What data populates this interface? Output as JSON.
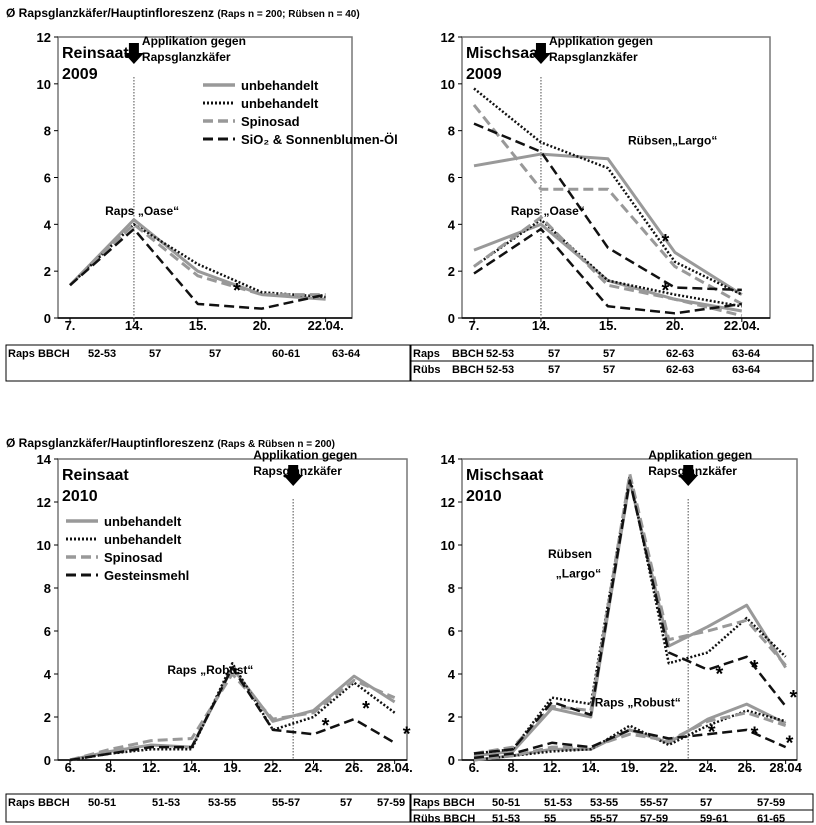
{
  "headers": [
    {
      "main": "Ø Rapsglanzkäfer/Hauptinfloreszenz",
      "sub": "(Raps n = 200; Rübsen n = 40)"
    },
    {
      "main": "Ø Rapsglanzkäfer/Hauptinfloreszenz",
      "sub": "(Raps & Rübsen n = 200)"
    }
  ],
  "application_label": [
    "Applikation gegen",
    "Rapsglanzkäfer"
  ],
  "colors": {
    "gray": "#999999",
    "black": "#111111",
    "vline": "#888888"
  },
  "chart_data": [
    {
      "type": "line",
      "panel_label": [
        "Reinsaat",
        "2009"
      ],
      "x": [
        "7.",
        "14.",
        "15.",
        "20.",
        "22.04."
      ],
      "ylim": [
        0,
        12
      ],
      "yticks": [
        0,
        2,
        4,
        6,
        8,
        10,
        12
      ],
      "grid": false,
      "application_at_index": 1,
      "legend": {
        "placement": "top-right",
        "entries": [
          {
            "name": "unbehandelt",
            "style": "gray_solid"
          },
          {
            "name": "unbehandelt",
            "style": "black_dotted"
          },
          {
            "name": "Spinosad",
            "style": "gray_dashed"
          },
          {
            "name": "SiO₂ & Sonnenblumen-Öl",
            "style": "black_dashed"
          }
        ]
      },
      "series": [
        {
          "style": "gray_solid",
          "values": [
            1.4,
            4.2,
            2.0,
            1.0,
            0.8
          ]
        },
        {
          "style": "black_dotted",
          "values": [
            1.4,
            4.0,
            2.3,
            1.1,
            0.9
          ]
        },
        {
          "style": "gray_dashed",
          "values": [
            1.4,
            4.0,
            1.8,
            1.0,
            1.0
          ]
        },
        {
          "style": "black_dashed",
          "values": [
            1.4,
            3.8,
            0.6,
            0.4,
            1.0
          ]
        }
      ],
      "annotations": [
        {
          "text": "Raps „Oase“",
          "x": 0.55,
          "y": 4.4
        },
        {
          "text": "*",
          "x": 2.55,
          "y": 0.9
        }
      ],
      "bbch": {
        "label_cols": [
          "Raps BBCH"
        ],
        "rows": [
          [
            "Raps BBCH",
            "52-53",
            "57",
            "57",
            "60-61",
            "63-64"
          ]
        ]
      }
    },
    {
      "type": "line",
      "panel_label": [
        "Mischsaat",
        "2009"
      ],
      "x": [
        "7.",
        "14.",
        "15.",
        "20.",
        "22.04."
      ],
      "ylim": [
        0,
        12
      ],
      "yticks": [
        0,
        2,
        4,
        6,
        8,
        10,
        12
      ],
      "grid": false,
      "application_at_index": 1,
      "series": [
        {
          "style": "gray_solid",
          "values": [
            6.5,
            7.0,
            6.8,
            2.8,
            1.0
          ]
        },
        {
          "style": "black_dotted",
          "values": [
            9.8,
            7.5,
            6.4,
            2.4,
            1.0
          ]
        },
        {
          "style": "gray_dashed",
          "values": [
            9.1,
            5.5,
            5.5,
            2.2,
            0.6
          ]
        },
        {
          "style": "black_dashed",
          "values": [
            8.3,
            7.1,
            3.0,
            1.3,
            1.2
          ]
        },
        {
          "style": "gray_solid",
          "values": [
            2.9,
            4.0,
            1.6,
            0.8,
            0.3
          ]
        },
        {
          "style": "black_dotted",
          "values": [
            2.2,
            4.2,
            1.6,
            1.0,
            0.5
          ]
        },
        {
          "style": "gray_dashed",
          "values": [
            2.2,
            4.3,
            1.4,
            0.8,
            0.1
          ]
        },
        {
          "style": "black_dashed",
          "values": [
            1.9,
            3.8,
            0.5,
            0.2,
            0.6
          ]
        }
      ],
      "annotations": [
        {
          "text": "Rübsen„Largo“",
          "x": 2.3,
          "y": 7.4
        },
        {
          "text": "Raps „Oase“",
          "x": 0.55,
          "y": 4.4
        },
        {
          "text": "*",
          "x": 2.8,
          "y": 3.0
        },
        {
          "text": "*",
          "x": 2.8,
          "y": 0.9
        }
      ],
      "bbch": {
        "label_cols": [
          "Raps",
          "BBCH"
        ],
        "rows": [
          [
            "Raps",
            "BBCH",
            "52-53",
            "57",
            "57",
            "62-63",
            "63-64"
          ],
          [
            "Rübs",
            "BBCH",
            "52-53",
            "57",
            "57",
            "62-63",
            "63-64"
          ]
        ]
      }
    },
    {
      "type": "line",
      "panel_label": [
        "Reinsaat",
        "2010"
      ],
      "x": [
        "6.",
        "8.",
        "12.",
        "14.",
        "19.",
        "22.",
        "24.",
        "26.",
        "28.04."
      ],
      "ylim": [
        0,
        14
      ],
      "yticks": [
        0,
        2,
        4,
        6,
        8,
        10,
        12,
        14
      ],
      "grid": false,
      "application_at_index": 5.5,
      "legend": {
        "placement": "top-left",
        "entries": [
          {
            "name": "unbehandelt",
            "style": "gray_solid"
          },
          {
            "name": "unbehandelt",
            "style": "black_dotted"
          },
          {
            "name": "Spinosad",
            "style": "gray_dashed"
          },
          {
            "name": "Gesteinsmehl",
            "style": "black_dashed"
          }
        ]
      },
      "series": [
        {
          "style": "gray_solid",
          "x_index": [
            0,
            1,
            2,
            3,
            4,
            5,
            6,
            7,
            8
          ],
          "values": [
            0,
            0.4,
            0.7,
            0.6,
            4.3,
            1.8,
            2.3,
            3.9,
            2.7
          ]
        },
        {
          "style": "black_dotted",
          "x_index": [
            0,
            1,
            2,
            3,
            4,
            5,
            6,
            7,
            8
          ],
          "values": [
            0,
            0.3,
            0.5,
            0.5,
            4.5,
            1.4,
            2.0,
            3.6,
            2.2
          ]
        },
        {
          "style": "gray_dashed",
          "x_index": [
            0,
            1,
            2,
            3,
            4,
            5,
            6,
            7,
            8
          ],
          "values": [
            0,
            0.5,
            0.9,
            1.0,
            4.0,
            1.9,
            2.2,
            3.7,
            2.9
          ]
        },
        {
          "style": "black_dashed",
          "x_index": [
            0,
            1,
            2,
            3,
            4,
            5,
            6,
            7,
            8
          ],
          "values": [
            0,
            0.3,
            0.6,
            0.6,
            4.3,
            1.4,
            1.2,
            1.9,
            0.8
          ]
        }
      ],
      "annotations": [
        {
          "text": "Raps „Robust“",
          "x": 2.4,
          "y": 4.0
        },
        {
          "text": "*",
          "x": 6.2,
          "y": 1.3
        },
        {
          "text": "*",
          "x": 7.2,
          "y": 2.1
        },
        {
          "text": "*",
          "x": 8.2,
          "y": 0.9
        }
      ],
      "bbch": {
        "label_cols": [
          "Raps BBCH"
        ],
        "rows": [
          [
            "Raps BBCH",
            "50-51",
            "51-53",
            "53-55",
            "55-57",
            "57",
            "57-59"
          ]
        ]
      }
    },
    {
      "type": "line",
      "panel_label": [
        "Mischsaat",
        "2010"
      ],
      "x": [
        "6.",
        "8.",
        "12.",
        "14.",
        "19.",
        "22.",
        "24.",
        "26.",
        "28.04"
      ],
      "ylim": [
        0,
        14
      ],
      "yticks": [
        0,
        2,
        4,
        6,
        8,
        10,
        12,
        14
      ],
      "grid": false,
      "application_at_index": 5.5,
      "series": [
        {
          "style": "gray_solid",
          "x_index": [
            0,
            1,
            2,
            3,
            4,
            5,
            6,
            7,
            8
          ],
          "values": [
            0.2,
            0.4,
            2.4,
            2.0,
            13.0,
            5.3,
            6.2,
            7.2,
            4.3
          ]
        },
        {
          "style": "black_dotted",
          "x_index": [
            0,
            1,
            2,
            3,
            4,
            5,
            6,
            7,
            8
          ],
          "values": [
            0.3,
            0.5,
            2.9,
            2.6,
            13.2,
            4.5,
            5.0,
            6.6,
            4.8
          ]
        },
        {
          "style": "gray_dashed",
          "x_index": [
            0,
            1,
            2,
            3,
            4,
            5,
            6,
            7,
            8
          ],
          "values": [
            0.3,
            0.6,
            2.5,
            2.3,
            13.3,
            5.6,
            6.0,
            6.5,
            4.4
          ]
        },
        {
          "style": "black_dashed",
          "x_index": [
            0,
            1,
            2,
            3,
            4,
            5,
            6,
            7,
            8
          ],
          "values": [
            0.3,
            0.5,
            2.7,
            2.1,
            13.0,
            5.0,
            4.2,
            4.8,
            2.5
          ]
        },
        {
          "style": "gray_solid",
          "x_index": [
            0,
            1,
            2,
            3,
            4,
            5,
            6,
            7,
            8
          ],
          "values": [
            0,
            0.2,
            0.5,
            0.5,
            1.4,
            0.8,
            1.9,
            2.6,
            1.7
          ]
        },
        {
          "style": "black_dotted",
          "x_index": [
            0,
            1,
            2,
            3,
            4,
            5,
            6,
            7,
            8
          ],
          "values": [
            0,
            0.2,
            0.4,
            0.5,
            1.6,
            0.7,
            1.6,
            2.3,
            1.8
          ]
        },
        {
          "style": "gray_dashed",
          "x_index": [
            0,
            1,
            2,
            3,
            4,
            5,
            6,
            7,
            8
          ],
          "values": [
            0,
            0.2,
            0.6,
            0.6,
            1.2,
            0.9,
            1.8,
            2.2,
            1.6
          ]
        },
        {
          "style": "black_dashed",
          "x_index": [
            0,
            1,
            2,
            3,
            4,
            5,
            6,
            7,
            8
          ],
          "values": [
            0.1,
            0.3,
            0.8,
            0.6,
            1.4,
            1.0,
            1.2,
            1.4,
            0.6
          ]
        }
      ],
      "annotations": [
        {
          "text": "Rübsen",
          "x": 1.9,
          "y": 9.4
        },
        {
          "text": "„Largo“",
          "x": 2.1,
          "y": 8.5
        },
        {
          "text": "Raps „Robust“",
          "x": 3.1,
          "y": 2.5
        },
        {
          "text": "*",
          "x": 6.2,
          "y": 3.7
        },
        {
          "text": "*",
          "x": 7.1,
          "y": 4.0
        },
        {
          "text": "*",
          "x": 8.1,
          "y": 2.6
        },
        {
          "text": "*",
          "x": 6.0,
          "y": 1.0
        },
        {
          "text": "*",
          "x": 7.1,
          "y": 0.9
        },
        {
          "text": "*",
          "x": 8.0,
          "y": 0.5
        }
      ],
      "bbch": {
        "label_cols": [
          "Raps BBCH"
        ],
        "rows": [
          [
            "Raps BBCH",
            "50-51",
            "51-53",
            "53-55",
            "55-57",
            "57",
            "57-59"
          ],
          [
            "Rübs BBCH",
            "51-53",
            "55",
            "55-57",
            "57-59",
            "59-61",
            "61-65"
          ]
        ]
      }
    }
  ]
}
